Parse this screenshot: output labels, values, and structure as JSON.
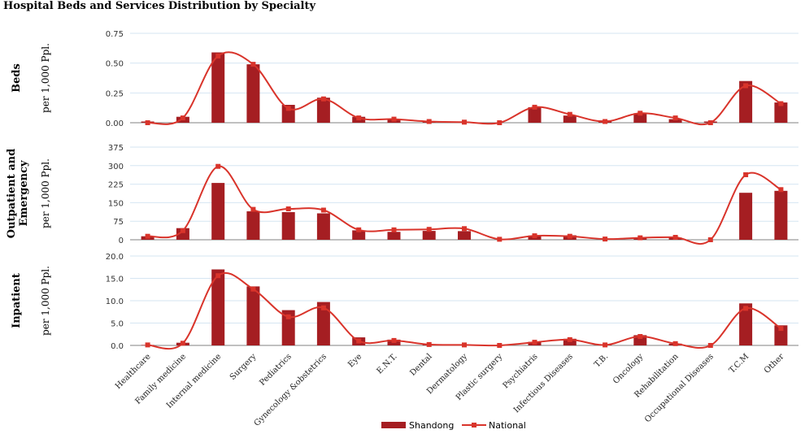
{
  "title": "Hospital Beds and Services Distribution by Specialty",
  "legend": {
    "bar_label": "Shandong",
    "line_label": "National"
  },
  "colors": {
    "bar": "#a51e22",
    "line": "#d9342b",
    "grid": "#d6e6f2"
  },
  "chart_data": [
    {
      "type": "bar+line",
      "panel": "beds",
      "ylabel_main": "Beds",
      "ylabel_sub": "per 1,000 Ppl.",
      "ylim": [
        0,
        0.75
      ],
      "yticks": [
        "0.00",
        "0.25",
        "0.50",
        "0.75"
      ],
      "yticks_values": [
        0,
        0.25,
        0.5,
        0.75
      ],
      "categories": [
        "Healthcare",
        "Family medicine",
        "Internal medicine",
        "Surgery",
        "Pediatrics",
        "Gynecology &obstetrics",
        "Eye",
        "E.N.T.",
        "Dental",
        "Dermatology",
        "Plastic surgery",
        "Psychiatris",
        "Infectious Diseases",
        "T.B.",
        "Oncology",
        "Rehabilitation",
        "Occupational Diseases",
        "T.C.M",
        "Other"
      ],
      "series": [
        {
          "name": "Shandong",
          "type": "bar",
          "values": [
            0.01,
            0.05,
            0.59,
            0.49,
            0.15,
            0.21,
            0.05,
            0.03,
            0.01,
            0.005,
            0.0,
            0.13,
            0.06,
            0.02,
            0.08,
            0.03,
            0.01,
            0.35,
            0.17
          ]
        },
        {
          "name": "National",
          "type": "line",
          "values": [
            0.0,
            0.04,
            0.56,
            0.49,
            0.12,
            0.2,
            0.04,
            0.03,
            0.01,
            0.005,
            0.0,
            0.13,
            0.07,
            0.01,
            0.08,
            0.04,
            0.0,
            0.31,
            0.16
          ]
        }
      ],
      "grid": true
    },
    {
      "type": "bar+line",
      "panel": "outpatient",
      "ylabel_main": "Outpatient and Emergency",
      "ylabel_sub": "per 1,000 Ppl.",
      "ylim": [
        0,
        375
      ],
      "yticks": [
        "0",
        "75",
        "150",
        "225",
        "300",
        "375"
      ],
      "yticks_values": [
        0,
        75,
        150,
        225,
        300,
        375
      ],
      "categories": [
        "Healthcare",
        "Family medicine",
        "Internal medicine",
        "Surgery",
        "Pediatrics",
        "Gynecology &obstetrics",
        "Eye",
        "E.N.T.",
        "Dental",
        "Dermatology",
        "Plastic surgery",
        "Psychiatris",
        "Infectious Diseases",
        "T.B.",
        "Oncology",
        "Rehabilitation",
        "Occupational Diseases",
        "T.C.M",
        "Other"
      ],
      "series": [
        {
          "name": "Shandong",
          "type": "bar",
          "values": [
            14,
            47,
            230,
            115,
            112,
            107,
            38,
            32,
            36,
            35,
            0,
            17,
            18,
            0,
            9,
            9,
            0,
            190,
            198
          ]
        },
        {
          "name": "National",
          "type": "line",
          "values": [
            14,
            37,
            297,
            123,
            125,
            120,
            40,
            40,
            42,
            45,
            2,
            16,
            14,
            3,
            8,
            10,
            0,
            263,
            203
          ]
        }
      ],
      "grid": true
    },
    {
      "type": "bar+line",
      "panel": "inpatient",
      "ylabel_main": "Inpatient",
      "ylabel_sub": "per 1,000 Ppl.",
      "ylim": [
        0,
        20
      ],
      "yticks": [
        "0.0",
        "5.0",
        "10.0",
        "15.0",
        "20.0"
      ],
      "yticks_values": [
        0,
        5,
        10,
        15,
        20
      ],
      "categories": [
        "Healthcare",
        "Family medicine",
        "Internal medicine",
        "Surgery",
        "Pediatrics",
        "Gynecology &obstetrics",
        "Eye",
        "E.N.T.",
        "Dental",
        "Dermatology",
        "Plastic surgery",
        "Psychiatris",
        "Infectious Diseases",
        "T.B.",
        "Oncology",
        "Rehabilitation",
        "Occupational Diseases",
        "T.C.M",
        "Other"
      ],
      "series": [
        {
          "name": "Shandong",
          "type": "bar",
          "values": [
            0.1,
            0.6,
            17.0,
            13.2,
            7.9,
            9.7,
            1.8,
            1.3,
            0.3,
            0.2,
            0.0,
            0.8,
            1.5,
            0.1,
            2.3,
            0.4,
            0.0,
            9.4,
            4.5
          ]
        },
        {
          "name": "National",
          "type": "line",
          "values": [
            0.1,
            0.5,
            15.6,
            12.6,
            6.4,
            8.4,
            1.0,
            1.1,
            0.2,
            0.1,
            0.0,
            0.7,
            1.3,
            0.1,
            2.0,
            0.4,
            0.0,
            8.3,
            3.8
          ]
        }
      ],
      "grid": true
    }
  ]
}
